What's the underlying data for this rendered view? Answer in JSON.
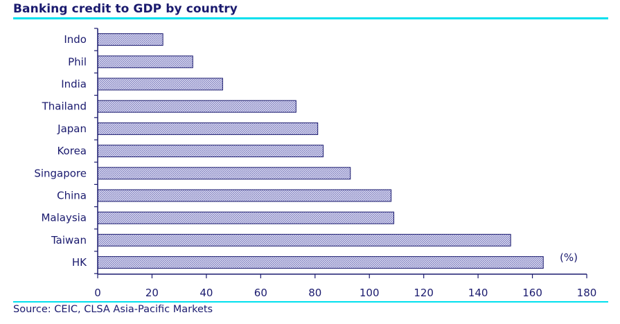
{
  "header": {
    "title": "Banking credit to GDP by country"
  },
  "footer": {
    "source": "Source: CEIC, CLSA Asia-Pacific Markets"
  },
  "colors": {
    "bar_fill": "#c8c8ea",
    "bar_stroke": "#1a1a6e",
    "axis": "#1a1a6e",
    "rule": "#00e0ee"
  },
  "chart_data": {
    "type": "bar",
    "orientation": "horizontal",
    "title": "Banking credit to GDP by country",
    "unit_label": "(%)",
    "categories": [
      "Indo",
      "Phil",
      "India",
      "Thailand",
      "Japan",
      "Korea",
      "Singapore",
      "China",
      "Malaysia",
      "Taiwan",
      "HK"
    ],
    "values": [
      24,
      35,
      46,
      73,
      81,
      83,
      93,
      108,
      109,
      152,
      164
    ],
    "xlim": [
      0,
      180
    ],
    "xticks": [
      0,
      20,
      40,
      60,
      80,
      100,
      120,
      140,
      160,
      180
    ],
    "grid": false,
    "legend": "none"
  }
}
